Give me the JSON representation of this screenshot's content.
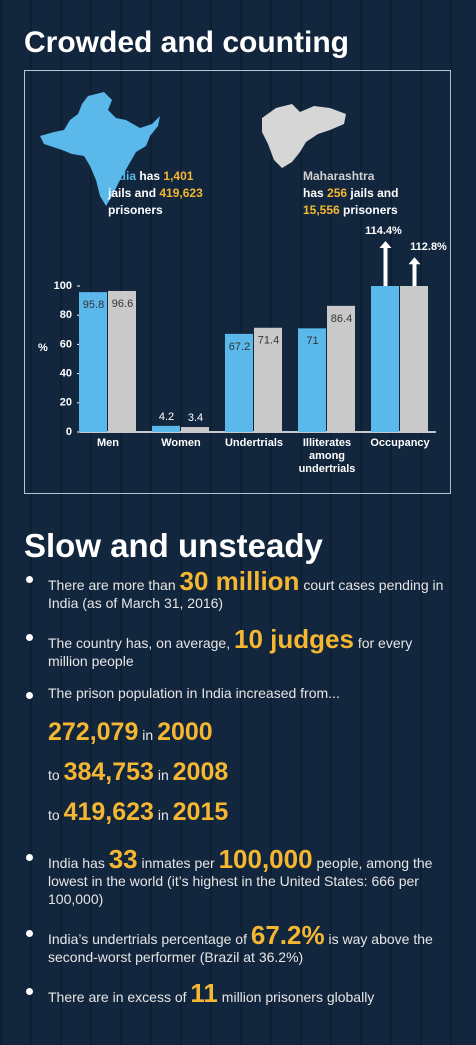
{
  "title": "Crowded and counting",
  "india": {
    "name": "India",
    "t1": "has",
    "jails": "1,401",
    "t2": "jails and",
    "prisoners": "419,623",
    "t3": "prisoners"
  },
  "maharashtra": {
    "name": "Maharashtra",
    "t1": "has",
    "jails": "256",
    "t2": "jails and",
    "prisoners": "15,556",
    "t3": "prisoners"
  },
  "chart_data": {
    "type": "bar",
    "y_label": "%",
    "categories": [
      "Men",
      "Women",
      "Undertrials",
      "Illiterates among undertrials",
      "Occupancy"
    ],
    "series": [
      {
        "name": "India",
        "color": "#5bb8ea",
        "values": [
          95.8,
          4.2,
          67.2,
          71,
          114.4
        ],
        "value_labels": [
          "95.8",
          "4.2",
          "67.2",
          "71",
          "114.4%"
        ]
      },
      {
        "name": "Maharashtra",
        "color": "#c9c9c9",
        "values": [
          96.6,
          3.4,
          71.4,
          86.4,
          112.8
        ],
        "value_labels": [
          "96.6",
          "3.4",
          "71.4",
          "86.4",
          "112.8%"
        ]
      }
    ],
    "ylim": [
      0,
      100
    ],
    "yticks": [
      0,
      20,
      40,
      60,
      80,
      100
    ]
  },
  "title2": "Slow and unsteady",
  "bullets": [
    [
      "There are more than ",
      {
        "em": "30 million"
      },
      " court cases pending in India (as of March 31, 2016)"
    ],
    [
      "The country has, on average, ",
      {
        "em": "10 judges"
      },
      " for every million people"
    ],
    [
      "The prison population in India increased from..."
    ]
  ],
  "population": [
    {
      "value": "272,079",
      "in": "in",
      "year": "2000"
    },
    {
      "to": "to",
      "value": "384,753",
      "in": "in",
      "year": "2008"
    },
    {
      "to": "to",
      "value": "419,623",
      "in": "in",
      "year": "2015"
    }
  ],
  "bullets2": [
    [
      "India has ",
      {
        "em": "33"
      },
      " inmates per ",
      {
        "em": "100,000"
      },
      " people, among the lowest in the world (it’s highest in the United States: 666 per 100,000)"
    ],
    [
      "India’s undertrials percentage of ",
      {
        "em": "67.2%"
      },
      " is way above the second-worst performer (Brazil at 36.2%)"
    ],
    [
      "There are in excess of ",
      {
        "em": "11"
      },
      " million prisoners globally"
    ]
  ]
}
